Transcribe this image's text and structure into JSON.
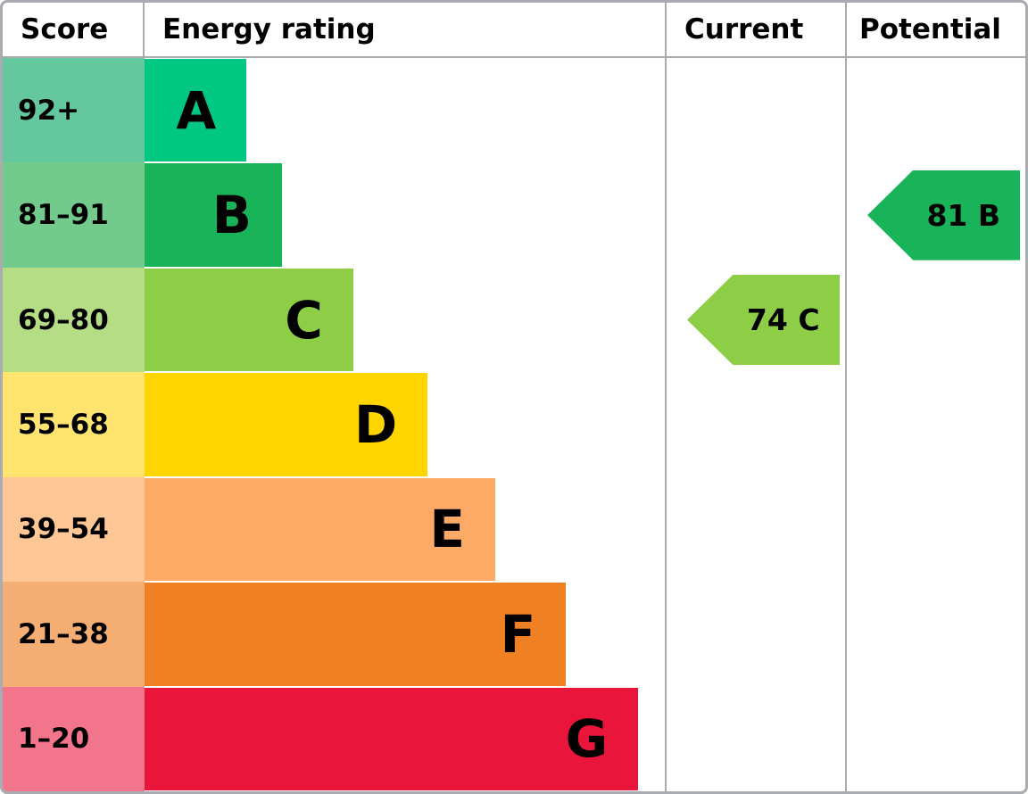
{
  "chart_data": {
    "type": "bar",
    "title": "",
    "columns": [
      "Score",
      "Energy rating",
      "Current",
      "Potential"
    ],
    "bands": [
      {
        "band": "A",
        "score_range": "92+",
        "bar_length_pct": 19.6,
        "bar_color": "#00c781",
        "score_color": "#64c79e"
      },
      {
        "band": "B",
        "score_range": "81–91",
        "bar_length_pct": 26.4,
        "bar_color": "#19b459",
        "score_color": "#72ca8c"
      },
      {
        "band": "C",
        "score_range": "69–80",
        "bar_length_pct": 40.1,
        "bar_color": "#8dce46",
        "score_color": "#b4dd85"
      },
      {
        "band": "D",
        "score_range": "55–68",
        "bar_length_pct": 54.4,
        "bar_color": "#ffd500",
        "score_color": "#ffe570"
      },
      {
        "band": "E",
        "score_range": "39–54",
        "bar_length_pct": 67.4,
        "bar_color": "#fcaa65",
        "score_color": "#ffc795"
      },
      {
        "band": "F",
        "score_range": "21–38",
        "bar_length_pct": 81.0,
        "bar_color": "#ef8023",
        "score_color": "#f4ad72"
      },
      {
        "band": "G",
        "score_range": "1–20",
        "bar_length_pct": 94.9,
        "bar_color": "#e9153b",
        "score_color": "#f3758b"
      }
    ],
    "current": {
      "value": 74,
      "band": "C",
      "label": "74 C",
      "color": "#8dce46"
    },
    "potential": {
      "value": 81,
      "band": "B",
      "label": "81 B",
      "color": "#19b459"
    },
    "legend_position": "none",
    "grid": false
  },
  "colors": {
    "border": "#a8abaf",
    "background": "#ffffff",
    "text": "#000000"
  }
}
